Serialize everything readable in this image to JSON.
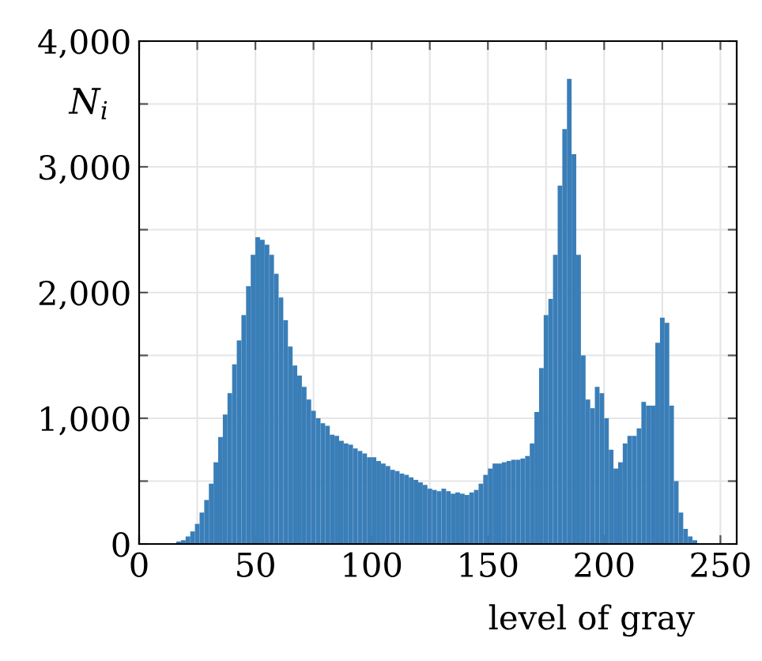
{
  "chart_data": {
    "type": "histogram",
    "xlabel": "level of gray",
    "ylabel": "N$_{i}$",
    "bins": [
      16,
      18,
      20,
      22,
      24,
      26,
      28,
      30,
      32,
      34,
      36,
      38,
      40,
      42,
      44,
      46,
      48,
      50,
      52,
      54,
      56,
      58,
      60,
      62,
      64,
      66,
      68,
      70,
      72,
      74,
      76,
      78,
      80,
      82,
      84,
      86,
      88,
      90,
      92,
      94,
      96,
      98,
      100,
      102,
      104,
      106,
      108,
      110,
      112,
      114,
      116,
      118,
      120,
      122,
      124,
      126,
      128,
      130,
      132,
      134,
      136,
      138,
      140,
      142,
      144,
      146,
      148,
      150,
      152,
      154,
      156,
      158,
      160,
      162,
      164,
      166,
      168,
      170,
      172,
      174,
      176,
      178,
      180,
      182,
      184,
      186,
      188,
      190,
      192,
      194,
      196,
      198,
      200,
      202,
      204,
      206,
      208,
      210,
      212,
      214,
      216,
      218,
      220,
      222,
      224,
      226,
      228,
      230,
      232,
      234,
      236,
      238,
      240
    ],
    "values": [
      20,
      30,
      60,
      100,
      160,
      250,
      350,
      480,
      650,
      850,
      1030,
      1200,
      1430,
      1620,
      1820,
      2050,
      2300,
      2440,
      2420,
      2380,
      2300,
      2150,
      1960,
      1780,
      1570,
      1420,
      1340,
      1250,
      1150,
      1060,
      1000,
      960,
      940,
      870,
      860,
      820,
      800,
      790,
      760,
      740,
      720,
      690,
      690,
      660,
      640,
      620,
      590,
      580,
      560,
      550,
      530,
      510,
      490,
      470,
      440,
      430,
      420,
      440,
      420,
      400,
      410,
      400,
      390,
      410,
      430,
      480,
      550,
      600,
      640,
      640,
      650,
      660,
      670,
      670,
      680,
      700,
      800,
      1050,
      1400,
      1820,
      1950,
      2300,
      2850,
      3300,
      3700,
      3100,
      2300,
      1500,
      1150,
      1080,
      1250,
      1200,
      1000,
      750,
      600,
      650,
      800,
      860,
      860,
      920,
      1130,
      1100,
      1100,
      1600,
      1800,
      1760,
      1100,
      500,
      250,
      120,
      60,
      30
    ],
    "color": "#3a7eb8",
    "xlim": [
      0,
      257
    ],
    "ylim": [
      0,
      4000
    ],
    "xticks": [
      0,
      {
        "value": 25,
        "label": null
      },
      50,
      {
        "value": 75,
        "label": null
      },
      100,
      {
        "value": 125,
        "label": null
      },
      150,
      {
        "value": 175,
        "label": null
      },
      200,
      {
        "value": 225,
        "label": null
      },
      250
    ],
    "yticks": [
      0,
      {
        "value": 500,
        "label": null
      },
      {
        "value": 1000,
        "label": "1,000"
      },
      {
        "value": 1500,
        "label": null
      },
      {
        "value": 2000,
        "label": "2,000"
      },
      {
        "value": 2500,
        "label": null
      },
      {
        "value": 3000,
        "label": "3,000"
      },
      {
        "value": 3500,
        "label": null
      },
      {
        "value": 4000,
        "label": "4,000"
      }
    ],
    "grid": true,
    "legend": false
  }
}
